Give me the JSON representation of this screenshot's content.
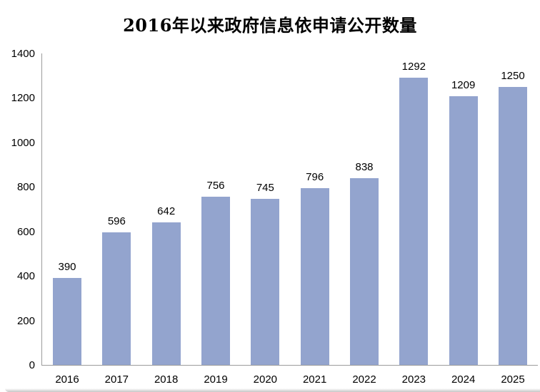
{
  "chart_data": {
    "type": "bar",
    "title": "2016年以来政府信息依申请公开数量",
    "categories": [
      "2016",
      "2017",
      "2018",
      "2019",
      "2020",
      "2021",
      "2022",
      "2023",
      "2024",
      "2025"
    ],
    "values": [
      390,
      596,
      642,
      756,
      745,
      796,
      838,
      1292,
      1209,
      1250
    ],
    "xlabel": "",
    "ylabel": "",
    "ylim": [
      0,
      1400
    ],
    "yticks": [
      0,
      200,
      400,
      600,
      800,
      1000,
      1200,
      1400
    ],
    "grid": false,
    "legend": false,
    "data_labels": true,
    "bar_color": "#93A4CE",
    "axis_color": "#9B9B9B",
    "text_color": "#000000",
    "background_color": "#FFFFFF"
  }
}
